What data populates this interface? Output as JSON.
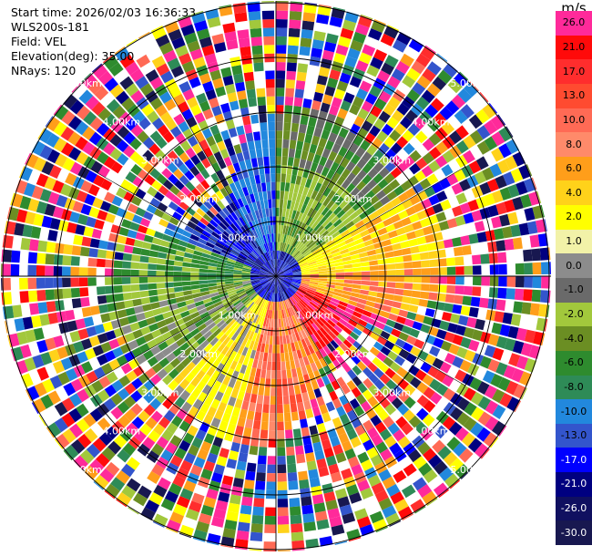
{
  "header": {
    "start_time": "Start time: 2026/02/03 16:36:33",
    "instrument": "WLS200s-181",
    "field": "Field: VEL",
    "elevation": "Elevation(deg): 35.00",
    "nrays": "NRays: 120"
  },
  "range_rings": {
    "labels": [
      "1.00km",
      "2.00km",
      "3.00km",
      "4.00km",
      "5.00km"
    ]
  },
  "colorbar": {
    "unit": "m/s",
    "levels": [
      {
        "label": "26.0",
        "color": "#ff2a9a",
        "text": "#000000"
      },
      {
        "label": "21.0",
        "color": "#ff0a0a",
        "text": "#000000"
      },
      {
        "label": "17.0",
        "color": "#ff2d2d",
        "text": "#000000"
      },
      {
        "label": "13.0",
        "color": "#ff4b30",
        "text": "#000000"
      },
      {
        "label": "10.0",
        "color": "#ff6a55",
        "text": "#000000"
      },
      {
        "label": "8.0",
        "color": "#ff8a6a",
        "text": "#000000"
      },
      {
        "label": "6.0",
        "color": "#ff9e1a",
        "text": "#000000"
      },
      {
        "label": "4.0",
        "color": "#ffd21a",
        "text": "#000000"
      },
      {
        "label": "2.0",
        "color": "#ffff00",
        "text": "#000000"
      },
      {
        "label": "1.0",
        "color": "#f2f2a8",
        "text": "#000000"
      },
      {
        "label": "0.0",
        "color": "#8c8c8c",
        "text": "#000000"
      },
      {
        "label": "-1.0",
        "color": "#6a6a6a",
        "text": "#000000"
      },
      {
        "label": "-2.0",
        "color": "#a2c83c",
        "text": "#000000"
      },
      {
        "label": "-4.0",
        "color": "#6b8e23",
        "text": "#000000"
      },
      {
        "label": "-6.0",
        "color": "#2e8b2e",
        "text": "#000000"
      },
      {
        "label": "-8.0",
        "color": "#2e8b57",
        "text": "#000000"
      },
      {
        "label": "-10.0",
        "color": "#2288dd",
        "text": "#000000"
      },
      {
        "label": "-13.0",
        "color": "#3355cc",
        "text": "#000000"
      },
      {
        "label": "-17.0",
        "color": "#0000ff",
        "text": "#ffffff"
      },
      {
        "label": "-21.0",
        "color": "#000080",
        "text": "#ffffff"
      },
      {
        "label": "-26.0",
        "color": "#101060",
        "text": "#ffffff"
      },
      {
        "label": "-30.0",
        "color": "#181850",
        "text": "#ffffff"
      }
    ]
  }
}
